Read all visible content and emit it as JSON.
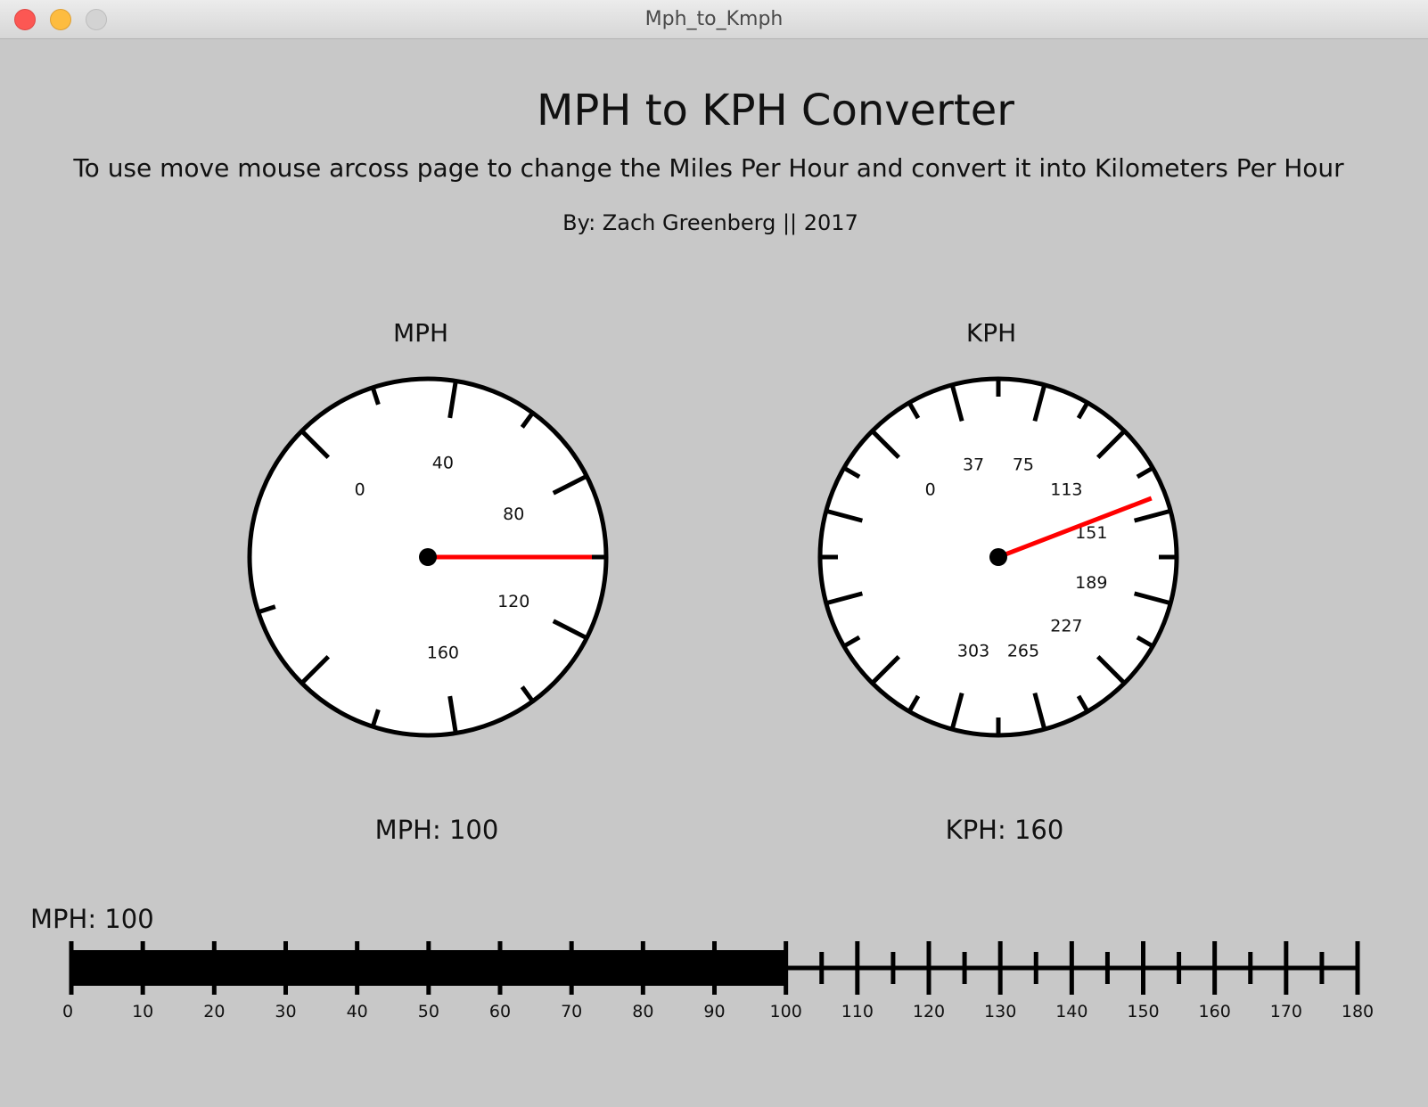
{
  "window": {
    "title": "Mph_to_Kmph",
    "controls": [
      "close-button",
      "minimize-button",
      "zoom-button"
    ]
  },
  "header": {
    "title": "MPH to KPH Converter",
    "instructions": "To use move mouse arcoss page to change the Miles Per Hour and convert it into Kilometers Per Hour",
    "byline": "By: Zach Greenberg || 2017"
  },
  "gauges": {
    "mph": {
      "label": "MPH",
      "min": 0,
      "max": 200,
      "value": 100,
      "tick_labels": [
        "0",
        "40",
        "80",
        "120",
        "160"
      ],
      "readout": "MPH: 100"
    },
    "kph": {
      "label": "KPH",
      "min": 0,
      "max": 379,
      "value": 160,
      "tick_labels": [
        "0",
        "37",
        "75",
        "113",
        "151",
        "189",
        "227",
        "265",
        "303"
      ],
      "readout": "KPH: 160"
    }
  },
  "slider": {
    "label": "MPH: 100",
    "min": 0,
    "max": 180,
    "value": 100,
    "tick_labels": [
      "0",
      "10",
      "20",
      "30",
      "40",
      "50",
      "60",
      "70",
      "80",
      "90",
      "100",
      "110",
      "120",
      "130",
      "140",
      "150",
      "160",
      "170",
      "180"
    ]
  },
  "colors": {
    "background": "#c8c8c8",
    "needle": "#ff0000",
    "dial_face": "#ffffff",
    "stroke": "#000000"
  }
}
